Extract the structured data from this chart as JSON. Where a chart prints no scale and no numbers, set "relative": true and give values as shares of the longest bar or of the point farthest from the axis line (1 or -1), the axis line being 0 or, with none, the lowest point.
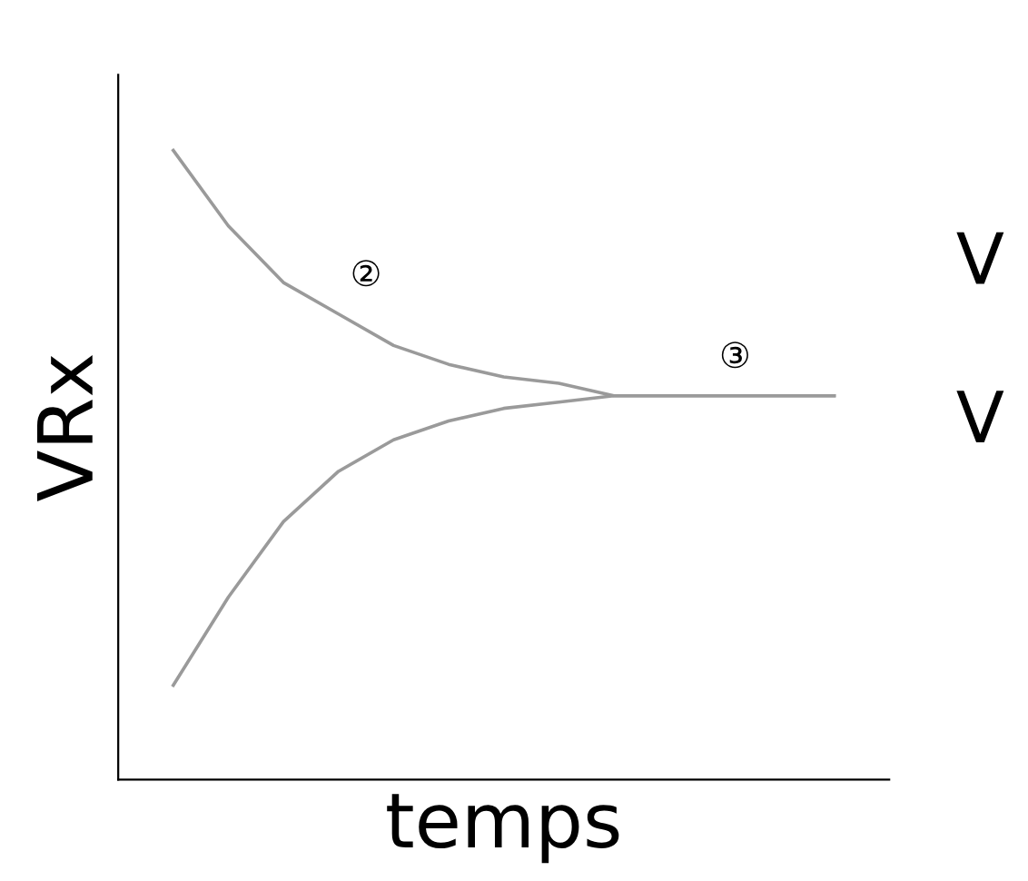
{
  "chart_data": {
    "type": "line",
    "relative": true,
    "xlabel": "temps",
    "ylabel": "VRx",
    "categories": [
      null,
      null,
      null,
      null,
      null,
      null,
      null,
      null,
      null,
      null,
      null,
      null,
      null
    ],
    "series": [
      {
        "color": "#9a9a9a",
        "values": [
          1,
          0.88,
          0.79,
          0.74,
          0.69,
          0.66,
          0.64,
          0.63,
          0.61,
          0.61,
          0.61,
          0.61,
          0.61
        ]
      },
      {
        "color": "#9a9a9a",
        "values": [
          0.15,
          0.29,
          0.41,
          0.49,
          0.54,
          0.57,
          0.59,
          0.6,
          0.61,
          0.61,
          0.61,
          0.61,
          0.61
        ]
      }
    ],
    "annotations": [
      "②",
      "③",
      "V",
      "V"
    ],
    "grid": false,
    "legend": false,
    "tick_labels": false
  }
}
